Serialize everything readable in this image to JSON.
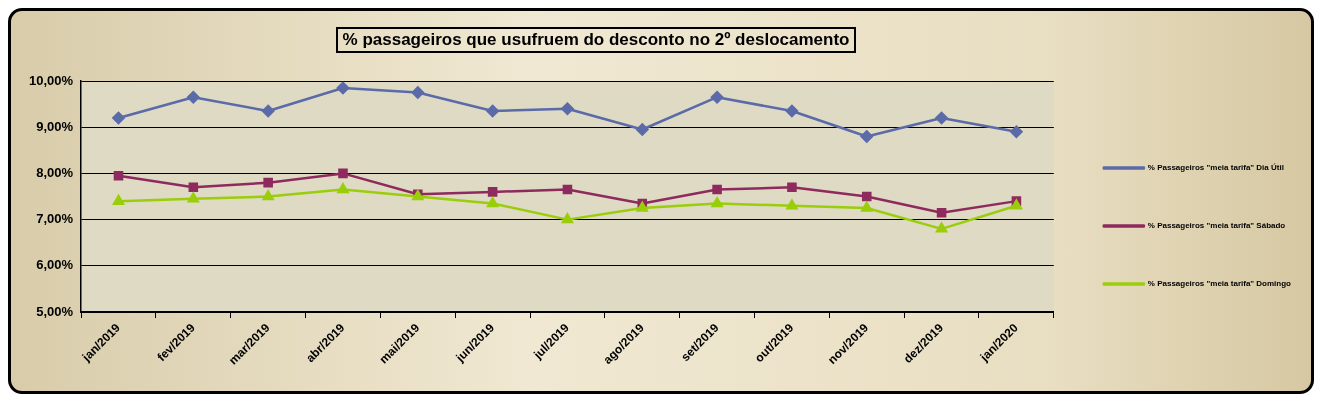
{
  "chart_data": {
    "type": "line",
    "title": "% passageiros que usufruem do desconto no 2º deslocamento",
    "categories": [
      "jan/2019",
      "fev/2019",
      "mar/2019",
      "abr/2019",
      "mai/2019",
      "jun/2019",
      "jul/2019",
      "ago/2019",
      "set/2019",
      "out/2019",
      "nov/2019",
      "dez/2019",
      "jan/2020"
    ],
    "series": [
      {
        "name": "% Passageiros \"meia tarifa\" Dia Útil",
        "color": "#5b6aa8",
        "marker": "diamond",
        "values": [
          9.2,
          9.65,
          9.35,
          9.85,
          9.75,
          9.35,
          9.4,
          8.95,
          9.65,
          9.35,
          8.8,
          9.2,
          8.9
        ]
      },
      {
        "name": "% Passageiros \"meia tarifa\" Sábado",
        "color": "#8e2a5e",
        "marker": "square",
        "values": [
          7.95,
          7.7,
          7.8,
          8.0,
          7.55,
          7.6,
          7.65,
          7.35,
          7.65,
          7.7,
          7.5,
          7.15,
          7.4
        ]
      },
      {
        "name": "% Passageiros \"meia tarifa\" Domingo",
        "color": "#9acd0a",
        "marker": "triangle",
        "values": [
          7.4,
          7.45,
          7.5,
          7.65,
          7.5,
          7.35,
          7.0,
          7.25,
          7.35,
          7.3,
          7.25,
          6.8,
          7.3
        ]
      }
    ],
    "ylim": [
      5,
      10
    ],
    "yticks": [
      {
        "value": 5,
        "label": "5,00%"
      },
      {
        "value": 6,
        "label": "6,00%"
      },
      {
        "value": 7,
        "label": "7,00%"
      },
      {
        "value": 8,
        "label": "8,00%"
      },
      {
        "value": 9,
        "label": "9,00%"
      },
      {
        "value": 10,
        "label": "10,00%"
      }
    ],
    "grid": "y",
    "legend": "right"
  }
}
